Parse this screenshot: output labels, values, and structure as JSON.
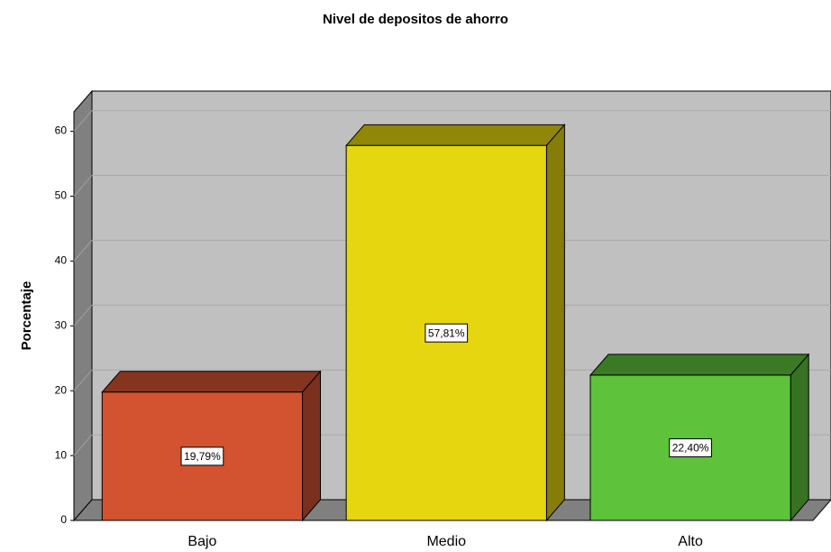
{
  "chart_data": {
    "type": "bar3d",
    "title": "Nivel de depositos de ahorro",
    "y_label": "Porcentaje",
    "categories": [
      "Bajo",
      "Medio",
      "Alto"
    ],
    "values": [
      19.79,
      57.81,
      22.4
    ],
    "value_labels": [
      "19,79%",
      "57,81%",
      "22,40%"
    ],
    "colors": [
      "#d35230",
      "#e5d60f",
      "#5ec23a"
    ],
    "ylim": [
      0,
      63
    ],
    "yticks": [
      0,
      10,
      20,
      30,
      40,
      50,
      60
    ],
    "grid": true
  }
}
